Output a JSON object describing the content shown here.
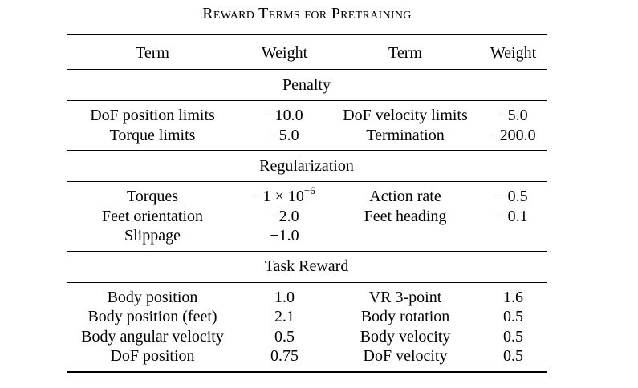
{
  "caption": "Reward Terms for Pretraining",
  "header": {
    "term1": "Term",
    "weight1": "Weight",
    "term2": "Term",
    "weight2": "Weight"
  },
  "sections": [
    {
      "title": "Penalty",
      "rows": [
        [
          "DoF position limits",
          "−10.0",
          "DoF velocity limits",
          "−5.0"
        ],
        [
          "Torque limits",
          "−5.0",
          "Termination",
          "−200.0"
        ]
      ]
    },
    {
      "title": "Regularization",
      "rows": [
        [
          "Torques",
          "−1 × 10",
          "Action rate",
          "−0.5"
        ],
        [
          "Feet orientation",
          "−2.0",
          "Feet heading",
          "−0.1"
        ],
        [
          "Slippage",
          "−1.0",
          "",
          ""
        ]
      ],
      "torques_exponent": "−6"
    },
    {
      "title": "Task Reward",
      "rows": [
        [
          "Body position",
          "1.0",
          "VR 3-point",
          "1.6"
        ],
        [
          "Body position (feet)",
          "2.1",
          "Body rotation",
          "0.5"
        ],
        [
          "Body angular velocity",
          "0.5",
          "Body velocity",
          "0.5"
        ],
        [
          "DoF position",
          "0.75",
          "DoF velocity",
          "0.5"
        ]
      ]
    }
  ]
}
